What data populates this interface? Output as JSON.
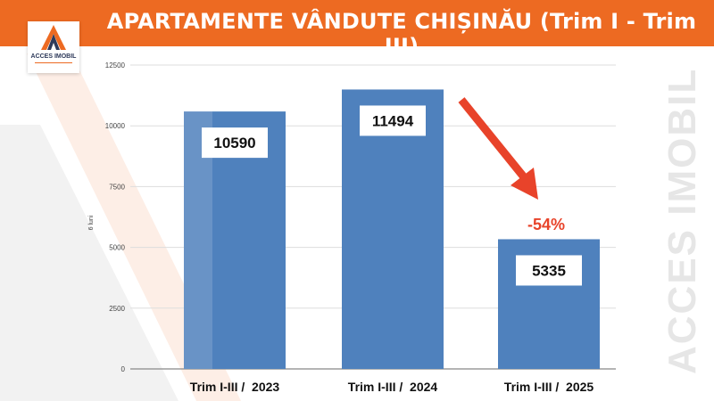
{
  "header": {
    "title": "APARTAMENTE VÂNDUTE CHIȘINĂU (Trim I - Trim III)"
  },
  "logo": {
    "text": "ACCES IMOBIL"
  },
  "watermark": "ACCES IMOBIL",
  "annotation": {
    "text": "-54%",
    "color": "#E8432A"
  },
  "chart_data": {
    "type": "bar",
    "categories": [
      "Trim I-III /  2023",
      "Trim I-III /  2024",
      "Trim I-III /  2025"
    ],
    "values": [
      10590,
      11494,
      5335
    ],
    "data_labels": [
      "10590",
      "11494",
      "5335"
    ],
    "ylabel": "6 luni",
    "ylim": [
      0,
      12500
    ],
    "yticks": [
      "0",
      "2500",
      "5000",
      "7500",
      "10000",
      "12500"
    ],
    "grid": true,
    "bar_color": "#4F81BD"
  }
}
